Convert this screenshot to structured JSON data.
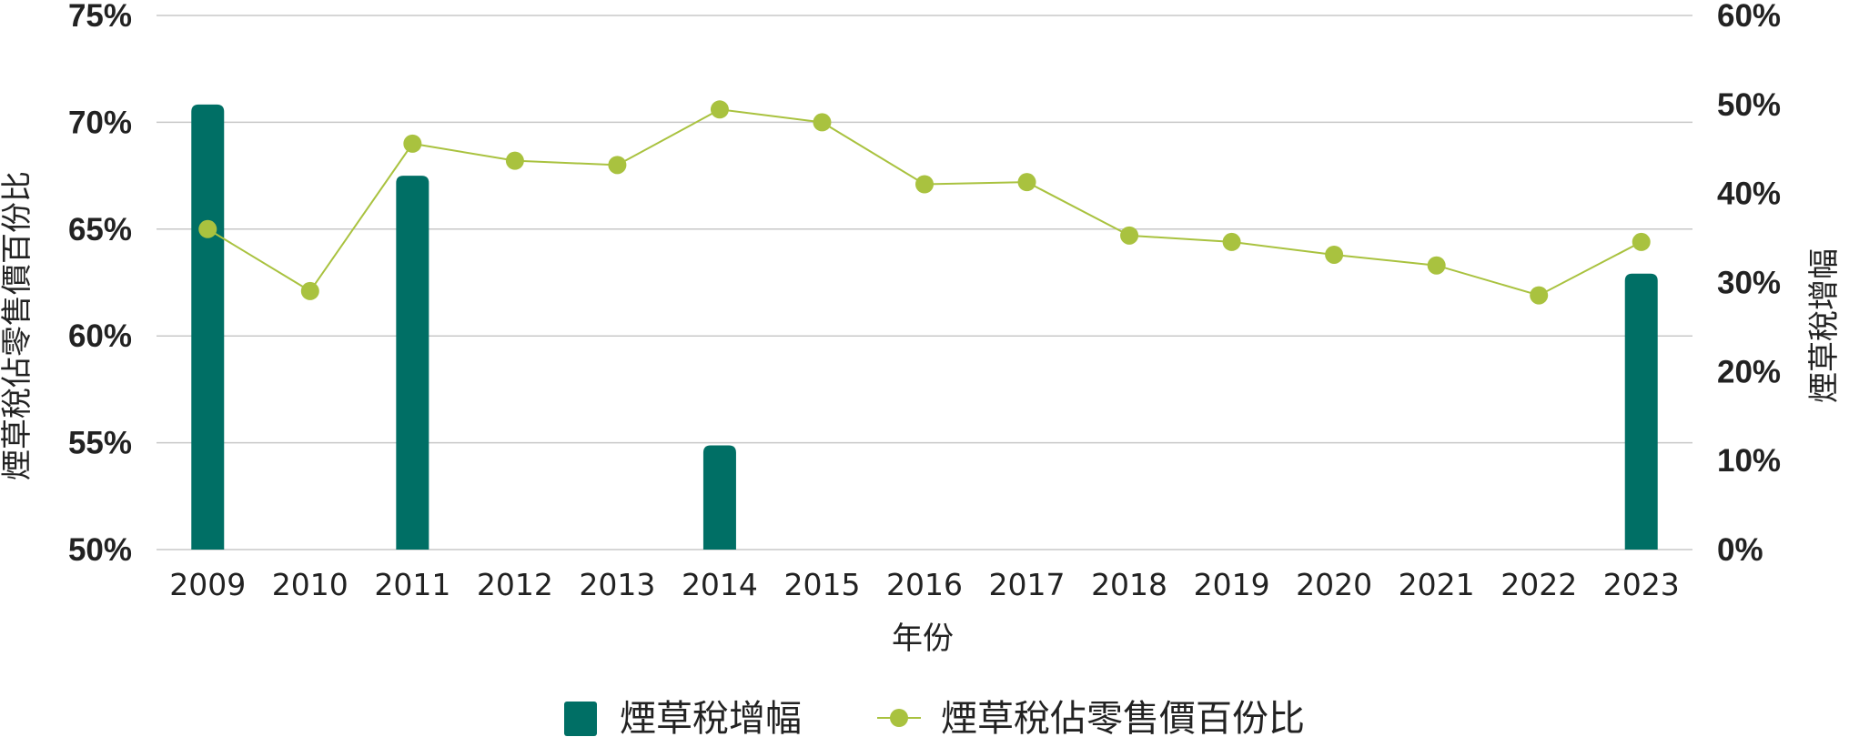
{
  "chart_data": {
    "type": "bar+line",
    "categories": [
      "2009",
      "2010",
      "2011",
      "2012",
      "2013",
      "2014",
      "2015",
      "2016",
      "2017",
      "2018",
      "2019",
      "2020",
      "2021",
      "2022",
      "2023"
    ],
    "xlabel": "年份",
    "ylabel_left": "煙草稅佔零售價百份比",
    "ylabel_right": "煙草稅增幅",
    "left_axis": {
      "ylim": [
        50,
        75
      ],
      "ticks": [
        "50%",
        "55%",
        "60%",
        "65%",
        "70%",
        "75%"
      ],
      "tick_values": [
        50,
        55,
        60,
        65,
        70,
        75
      ]
    },
    "right_axis": {
      "ylim": [
        0,
        60
      ],
      "ticks": [
        "0%",
        "10%",
        "20%",
        "30%",
        "40%",
        "50%",
        "60%"
      ],
      "tick_values": [
        0,
        10,
        20,
        30,
        40,
        50,
        60
      ]
    },
    "series": [
      {
        "name": "煙草稅增幅",
        "type": "bar",
        "axis": "right",
        "color": "#006f65",
        "values": [
          50,
          null,
          42,
          null,
          null,
          11.7,
          null,
          null,
          null,
          null,
          null,
          null,
          null,
          null,
          31
        ]
      },
      {
        "name": "煙草稅佔零售價百份比",
        "type": "line",
        "axis": "left",
        "color": "#a9c23f",
        "values": [
          65.0,
          62.1,
          69.0,
          68.2,
          68.0,
          70.6,
          70.0,
          67.1,
          67.2,
          64.7,
          64.4,
          63.8,
          63.3,
          61.9,
          64.4
        ]
      }
    ],
    "grid": true,
    "legend_position": "bottom-center"
  }
}
